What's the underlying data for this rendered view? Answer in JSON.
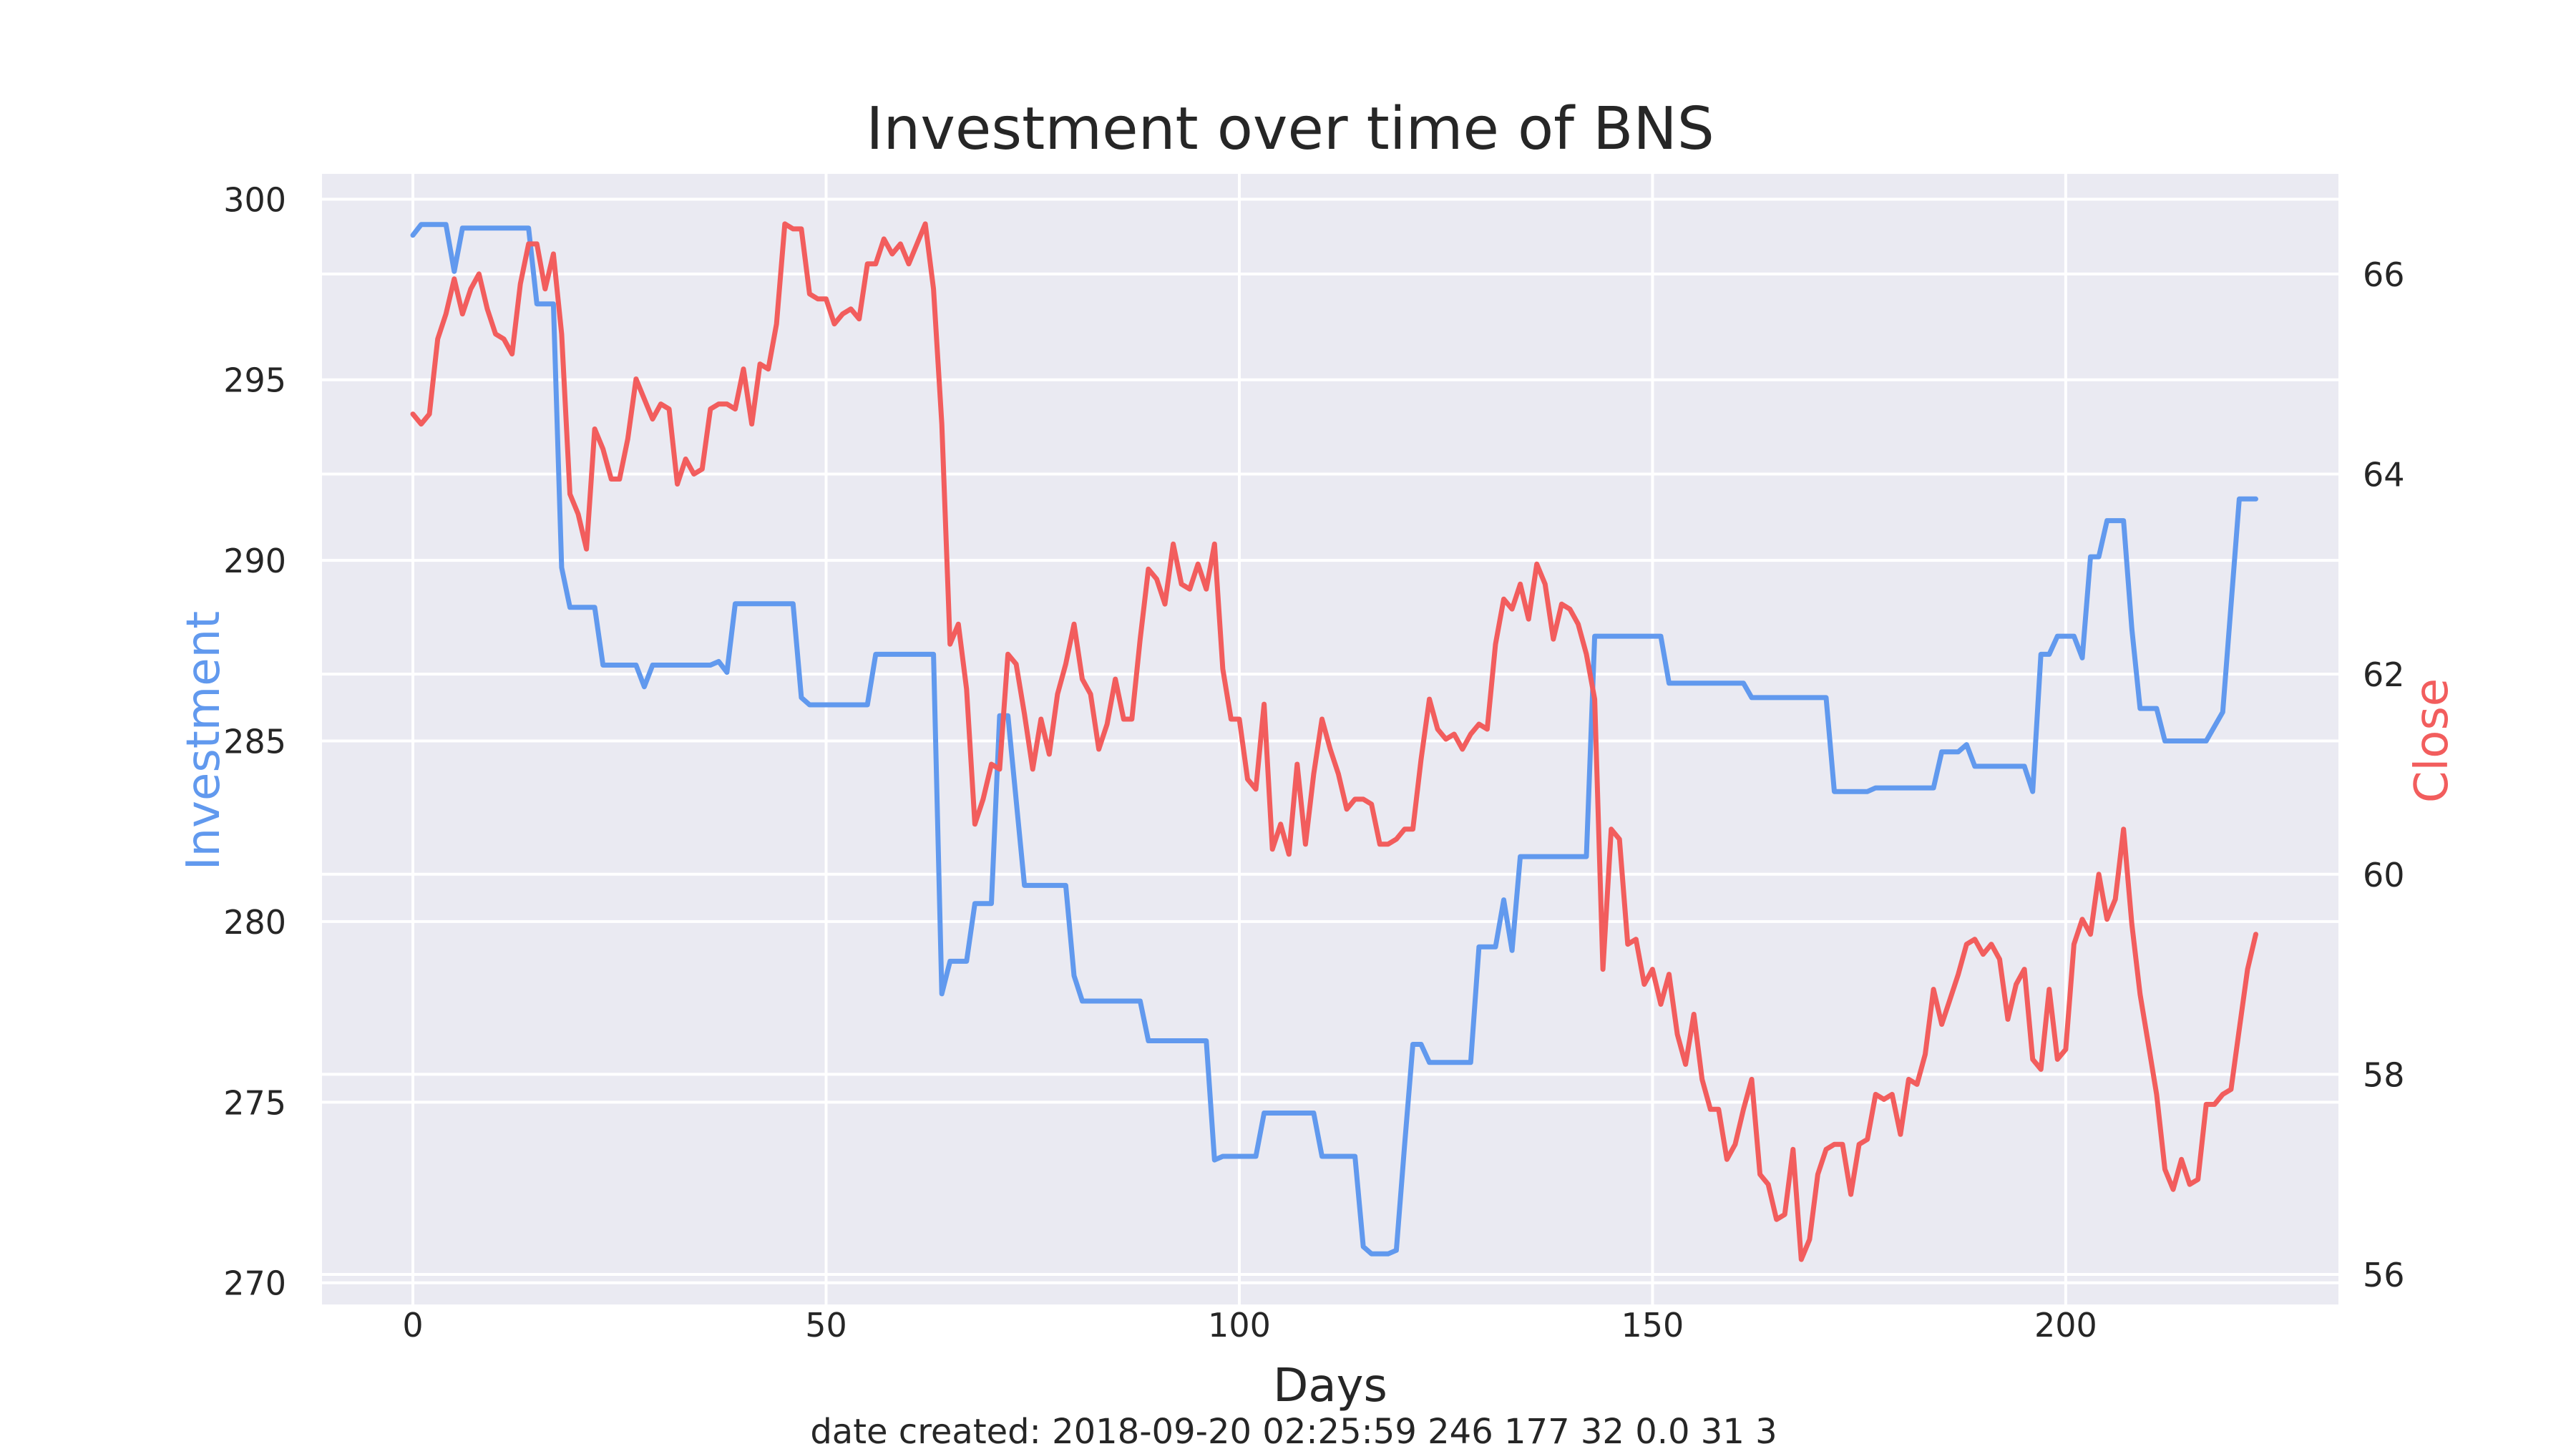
{
  "chart_data": {
    "type": "line",
    "title": "Investment over time of BNS",
    "xlabel": "Days",
    "ylabel_left": "Investment",
    "ylabel_right": "Close",
    "footnote": "date created: 2018-09-20 02:25:59 246 177 32 0.0 31 3",
    "xlim": [
      -11,
      233
    ],
    "ylim_left": [
      269.4,
      300.7
    ],
    "ylim_right": [
      55.7,
      67.0
    ],
    "x_ticks": [
      0,
      50,
      100,
      150,
      200
    ],
    "y_left_ticks": [
      270,
      275,
      280,
      285,
      290,
      295,
      300
    ],
    "y_right_ticks": [
      56,
      58,
      60,
      62,
      64,
      66
    ],
    "grid": true,
    "colors": {
      "investment": "#6199ee",
      "close": "#f25d5d",
      "background": "#eaeaf2",
      "grid": "#ffffff"
    },
    "series": [
      {
        "name": "Investment",
        "axis": "left",
        "points": [
          [
            0,
            299.0
          ],
          [
            1,
            299.3
          ],
          [
            4,
            299.3
          ],
          [
            5,
            298.0
          ],
          [
            6,
            299.2
          ],
          [
            14,
            299.2
          ],
          [
            15,
            297.1
          ],
          [
            17,
            297.1
          ],
          [
            18,
            289.8
          ],
          [
            19,
            288.7
          ],
          [
            22,
            288.7
          ],
          [
            23,
            287.1
          ],
          [
            27,
            287.1
          ],
          [
            28,
            286.5
          ],
          [
            29,
            287.1
          ],
          [
            36,
            287.1
          ],
          [
            37,
            287.2
          ],
          [
            38,
            286.9
          ],
          [
            39,
            288.8
          ],
          [
            46,
            288.8
          ],
          [
            47,
            286.2
          ],
          [
            48,
            286.0
          ],
          [
            55,
            286.0
          ],
          [
            56,
            287.4
          ],
          [
            63,
            287.4
          ],
          [
            64,
            278.0
          ],
          [
            65,
            278.9
          ],
          [
            67,
            278.9
          ],
          [
            68,
            280.5
          ],
          [
            70,
            280.5
          ],
          [
            71,
            285.7
          ],
          [
            72,
            285.7
          ],
          [
            74,
            281.0
          ],
          [
            79,
            281.0
          ],
          [
            80,
            278.5
          ],
          [
            81,
            277.8
          ],
          [
            88,
            277.8
          ],
          [
            89,
            276.7
          ],
          [
            96,
            276.7
          ],
          [
            97,
            273.4
          ],
          [
            98,
            273.5
          ],
          [
            102,
            273.5
          ],
          [
            103,
            274.7
          ],
          [
            109,
            274.7
          ],
          [
            110,
            273.5
          ],
          [
            114,
            273.5
          ],
          [
            115,
            271.0
          ],
          [
            116,
            270.8
          ],
          [
            118,
            270.8
          ],
          [
            119,
            270.9
          ],
          [
            120,
            273.8
          ],
          [
            121,
            276.6
          ],
          [
            122,
            276.6
          ],
          [
            123,
            276.1
          ],
          [
            128,
            276.1
          ],
          [
            129,
            279.3
          ],
          [
            131,
            279.3
          ],
          [
            132,
            280.6
          ],
          [
            133,
            279.2
          ],
          [
            134,
            281.8
          ],
          [
            142,
            281.8
          ],
          [
            143,
            287.9
          ],
          [
            151,
            287.9
          ],
          [
            152,
            286.6
          ],
          [
            161,
            286.6
          ],
          [
            162,
            286.2
          ],
          [
            171,
            286.2
          ],
          [
            172,
            283.6
          ],
          [
            176,
            283.6
          ],
          [
            177,
            283.7
          ],
          [
            184,
            283.7
          ],
          [
            185,
            284.7
          ],
          [
            187,
            284.7
          ],
          [
            188,
            284.9
          ],
          [
            189,
            284.3
          ],
          [
            195,
            284.3
          ],
          [
            196,
            283.6
          ],
          [
            197,
            287.4
          ],
          [
            198,
            287.4
          ],
          [
            199,
            287.9
          ],
          [
            201,
            287.9
          ],
          [
            202,
            287.3
          ],
          [
            203,
            290.1
          ],
          [
            204,
            290.1
          ],
          [
            205,
            291.1
          ],
          [
            207,
            291.1
          ],
          [
            208,
            288.1
          ],
          [
            209,
            285.9
          ],
          [
            211,
            285.9
          ],
          [
            212,
            285.0
          ],
          [
            217,
            285.0
          ],
          [
            219,
            285.8
          ],
          [
            221,
            291.7
          ],
          [
            223,
            291.7
          ]
        ]
      },
      {
        "name": "Close",
        "axis": "right",
        "points": [
          [
            0,
            64.6
          ],
          [
            1,
            64.5
          ],
          [
            2,
            64.6
          ],
          [
            3,
            65.35
          ],
          [
            4,
            65.6
          ],
          [
            5,
            65.95
          ],
          [
            6,
            65.6
          ],
          [
            7,
            65.85
          ],
          [
            8,
            66.0
          ],
          [
            9,
            65.65
          ],
          [
            10,
            65.4
          ],
          [
            11,
            65.35
          ],
          [
            12,
            65.2
          ],
          [
            13,
            65.9
          ],
          [
            14,
            66.3
          ],
          [
            15,
            66.3
          ],
          [
            16,
            65.85
          ],
          [
            17,
            66.2
          ],
          [
            18,
            65.4
          ],
          [
            19,
            63.8
          ],
          [
            20,
            63.6
          ],
          [
            21,
            63.25
          ],
          [
            22,
            64.45
          ],
          [
            23,
            64.25
          ],
          [
            24,
            63.95
          ],
          [
            25,
            63.95
          ],
          [
            26,
            64.35
          ],
          [
            27,
            64.95
          ],
          [
            28,
            64.75
          ],
          [
            29,
            64.55
          ],
          [
            30,
            64.7
          ],
          [
            31,
            64.65
          ],
          [
            32,
            63.9
          ],
          [
            33,
            64.15
          ],
          [
            34,
            64.0
          ],
          [
            35,
            64.05
          ],
          [
            36,
            64.65
          ],
          [
            37,
            64.7
          ],
          [
            38,
            64.7
          ],
          [
            39,
            64.65
          ],
          [
            40,
            65.05
          ],
          [
            41,
            64.5
          ],
          [
            42,
            65.1
          ],
          [
            43,
            65.05
          ],
          [
            44,
            65.5
          ],
          [
            45,
            66.5
          ],
          [
            46,
            66.45
          ],
          [
            47,
            66.45
          ],
          [
            48,
            65.8
          ],
          [
            49,
            65.75
          ],
          [
            50,
            65.75
          ],
          [
            51,
            65.5
          ],
          [
            52,
            65.6
          ],
          [
            53,
            65.65
          ],
          [
            54,
            65.55
          ],
          [
            55,
            66.1
          ],
          [
            56,
            66.1
          ],
          [
            57,
            66.35
          ],
          [
            58,
            66.2
          ],
          [
            59,
            66.3
          ],
          [
            60,
            66.1
          ],
          [
            61,
            66.3
          ],
          [
            62,
            66.5
          ],
          [
            63,
            65.85
          ],
          [
            64,
            64.5
          ],
          [
            65,
            62.3
          ],
          [
            66,
            62.5
          ],
          [
            67,
            61.85
          ],
          [
            68,
            60.5
          ],
          [
            69,
            60.75
          ],
          [
            70,
            61.1
          ],
          [
            71,
            61.05
          ],
          [
            72,
            62.2
          ],
          [
            73,
            62.1
          ],
          [
            74,
            61.6
          ],
          [
            75,
            61.05
          ],
          [
            76,
            61.55
          ],
          [
            77,
            61.2
          ],
          [
            78,
            61.8
          ],
          [
            79,
            62.1
          ],
          [
            80,
            62.5
          ],
          [
            81,
            61.95
          ],
          [
            82,
            61.8
          ],
          [
            83,
            61.25
          ],
          [
            84,
            61.5
          ],
          [
            85,
            61.95
          ],
          [
            86,
            61.55
          ],
          [
            87,
            61.55
          ],
          [
            88,
            62.35
          ],
          [
            89,
            63.05
          ],
          [
            90,
            62.95
          ],
          [
            91,
            62.7
          ],
          [
            92,
            63.3
          ],
          [
            93,
            62.9
          ],
          [
            94,
            62.85
          ],
          [
            95,
            63.1
          ],
          [
            96,
            62.85
          ],
          [
            97,
            63.3
          ],
          [
            98,
            62.05
          ],
          [
            99,
            61.55
          ],
          [
            100,
            61.55
          ],
          [
            101,
            60.95
          ],
          [
            102,
            60.85
          ],
          [
            103,
            61.7
          ],
          [
            104,
            60.25
          ],
          [
            105,
            60.5
          ],
          [
            106,
            60.2
          ],
          [
            107,
            61.1
          ],
          [
            108,
            60.3
          ],
          [
            109,
            61.0
          ],
          [
            110,
            61.55
          ],
          [
            111,
            61.25
          ],
          [
            112,
            61.0
          ],
          [
            113,
            60.65
          ],
          [
            114,
            60.75
          ],
          [
            115,
            60.75
          ],
          [
            116,
            60.7
          ],
          [
            117,
            60.3
          ],
          [
            118,
            60.3
          ],
          [
            119,
            60.35
          ],
          [
            120,
            60.45
          ],
          [
            121,
            60.45
          ],
          [
            122,
            61.15
          ],
          [
            123,
            61.75
          ],
          [
            124,
            61.45
          ],
          [
            125,
            61.35
          ],
          [
            126,
            61.4
          ],
          [
            127,
            61.25
          ],
          [
            128,
            61.4
          ],
          [
            129,
            61.5
          ],
          [
            130,
            61.45
          ],
          [
            131,
            62.3
          ],
          [
            132,
            62.75
          ],
          [
            133,
            62.65
          ],
          [
            134,
            62.9
          ],
          [
            135,
            62.55
          ],
          [
            136,
            63.1
          ],
          [
            137,
            62.9
          ],
          [
            138,
            62.35
          ],
          [
            139,
            62.7
          ],
          [
            140,
            62.65
          ],
          [
            141,
            62.5
          ],
          [
            142,
            62.2
          ],
          [
            143,
            61.75
          ],
          [
            144,
            59.05
          ],
          [
            145,
            60.45
          ],
          [
            146,
            60.35
          ],
          [
            147,
            59.3
          ],
          [
            148,
            59.35
          ],
          [
            149,
            58.9
          ],
          [
            150,
            59.05
          ],
          [
            151,
            58.7
          ],
          [
            152,
            59.0
          ],
          [
            153,
            58.4
          ],
          [
            154,
            58.1
          ],
          [
            155,
            58.6
          ],
          [
            156,
            57.95
          ],
          [
            157,
            57.65
          ],
          [
            158,
            57.65
          ],
          [
            159,
            57.15
          ],
          [
            160,
            57.3
          ],
          [
            161,
            57.65
          ],
          [
            162,
            57.95
          ],
          [
            163,
            57.0
          ],
          [
            164,
            56.9
          ],
          [
            165,
            56.55
          ],
          [
            166,
            56.6
          ],
          [
            167,
            57.25
          ],
          [
            168,
            56.15
          ],
          [
            169,
            56.35
          ],
          [
            170,
            57.0
          ],
          [
            171,
            57.25
          ],
          [
            172,
            57.3
          ],
          [
            173,
            57.3
          ],
          [
            174,
            56.8
          ],
          [
            175,
            57.3
          ],
          [
            176,
            57.35
          ],
          [
            177,
            57.8
          ],
          [
            178,
            57.75
          ],
          [
            179,
            57.8
          ],
          [
            180,
            57.4
          ],
          [
            181,
            57.95
          ],
          [
            182,
            57.9
          ],
          [
            183,
            58.2
          ],
          [
            184,
            58.85
          ],
          [
            185,
            58.5
          ],
          [
            186,
            58.75
          ],
          [
            187,
            59.0
          ],
          [
            188,
            59.3
          ],
          [
            189,
            59.35
          ],
          [
            190,
            59.2
          ],
          [
            191,
            59.3
          ],
          [
            192,
            59.15
          ],
          [
            193,
            58.55
          ],
          [
            194,
            58.9
          ],
          [
            195,
            59.05
          ],
          [
            196,
            58.15
          ],
          [
            197,
            58.05
          ],
          [
            198,
            58.85
          ],
          [
            199,
            58.15
          ],
          [
            200,
            58.25
          ],
          [
            201,
            59.3
          ],
          [
            202,
            59.55
          ],
          [
            203,
            59.4
          ],
          [
            204,
            60.0
          ],
          [
            205,
            59.55
          ],
          [
            206,
            59.75
          ],
          [
            207,
            60.45
          ],
          [
            208,
            59.5
          ],
          [
            209,
            58.8
          ],
          [
            210,
            58.3
          ],
          [
            211,
            57.8
          ],
          [
            212,
            57.05
          ],
          [
            213,
            56.85
          ],
          [
            214,
            57.15
          ],
          [
            215,
            56.9
          ],
          [
            216,
            56.95
          ],
          [
            217,
            57.7
          ],
          [
            218,
            57.7
          ],
          [
            219,
            57.8
          ],
          [
            220,
            57.85
          ],
          [
            221,
            58.45
          ],
          [
            222,
            59.05
          ],
          [
            223,
            59.4
          ]
        ]
      }
    ]
  }
}
